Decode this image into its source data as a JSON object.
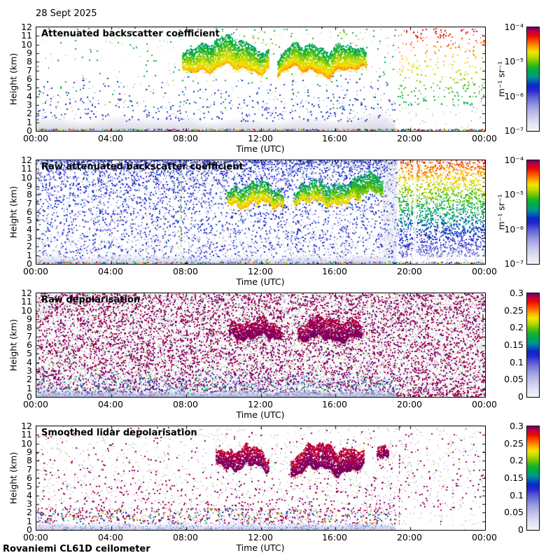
{
  "page": {
    "date": "28 Sept 2025",
    "footer": "Rovaniemi CL61D ceilometer",
    "background": "#ffffff",
    "axis_color": "#000000"
  },
  "chart_data": [
    {
      "type": "heatmap",
      "title": "Attenuated backscatter coefficient",
      "xlabel": "Time (UTC)",
      "ylabel": "Height (km)",
      "x_ticks": [
        "00:00",
        "04:00",
        "08:00",
        "12:00",
        "16:00",
        "20:00",
        "00:00"
      ],
      "x_range_hours": [
        0,
        24
      ],
      "y_ticks": [
        0,
        1,
        2,
        3,
        4,
        5,
        6,
        7,
        8,
        9,
        10,
        11,
        12
      ],
      "y_range_km": [
        0,
        12
      ],
      "colorbar": {
        "ticks": [
          "10⁻⁴",
          "10⁻⁵",
          "10⁻⁶",
          "10⁻⁷"
        ],
        "label": "m⁻¹ sr⁻¹",
        "scale": "log",
        "range": [
          "1e-7",
          "1e-4"
        ]
      },
      "features": [
        {
          "kind": "haze",
          "t": [
            0,
            19.2
          ],
          "km": [
            0,
            1.6
          ],
          "color": "#d4d4e4",
          "alpha": 0.95,
          "bumps": [
            {
              "t": 5.5,
              "w": 1.5,
              "km": 0.5
            },
            {
              "t": 8.2,
              "w": 0.5,
              "km": 0.4
            },
            {
              "t": 18.3,
              "w": 0.7,
              "km": 0.9
            }
          ]
        },
        {
          "kind": "speckle",
          "t": [
            0,
            19.2
          ],
          "km": [
            1.2,
            6.6
          ],
          "density": 0.055,
          "v": [
            0.3,
            0.47
          ],
          "bias": 0.55,
          "size": 2
        },
        {
          "kind": "speckle",
          "t": [
            0,
            19.2
          ],
          "km": [
            2.5,
            12
          ],
          "density": 0.014,
          "v": [
            0.52,
            0.63
          ],
          "bias": 1.25,
          "size": 2
        },
        {
          "kind": "speckle",
          "t": [
            0,
            19.2
          ],
          "km": [
            2,
            12
          ],
          "density": 0.003,
          "v": [
            0.6,
            0.95
          ],
          "bias": 1,
          "size": 1
        },
        {
          "kind": "cloud",
          "t": [
            7.8,
            12.4
          ],
          "baseKm": 7.3,
          "topKm": 10.6,
          "amp": 0.8,
          "density": 0.5,
          "v": [
            0.55,
            0.8
          ],
          "seed": 11
        },
        {
          "kind": "cloud",
          "t": [
            12.9,
            17.6
          ],
          "baseKm": 7.0,
          "topKm": 10.0,
          "amp": 0.9,
          "density": 0.55,
          "v": [
            0.55,
            0.82
          ],
          "seed": 12
        },
        {
          "kind": "speckle",
          "t": [
            9.5,
            17.6
          ],
          "km": [
            9.8,
            11.9
          ],
          "density": 0.035,
          "v": [
            0.6,
            0.72
          ],
          "bias": 1,
          "size": 2
        },
        {
          "kind": "stratified",
          "t": [
            19.3,
            24
          ],
          "km": [
            3,
            12
          ],
          "density": 0.09,
          "vTop": 0.94,
          "vBot": 0.56,
          "jitterV": 0.06,
          "size": 2
        },
        {
          "kind": "speckle",
          "t": [
            19.3,
            24
          ],
          "km": [
            0.3,
            3
          ],
          "density": 0.012,
          "v": [
            0.2,
            0.9
          ],
          "bias": 1,
          "size": 1
        },
        {
          "kind": "bottomline",
          "t": [
            0,
            24
          ],
          "density": 0.55,
          "v": [
            0.1,
            1.0
          ]
        }
      ]
    },
    {
      "type": "heatmap",
      "title": "Raw attenuated backscatter coefficient",
      "xlabel": "Time (UTC)",
      "ylabel": "Height (km)",
      "x_ticks": [
        "00:00",
        "04:00",
        "08:00",
        "12:00",
        "16:00",
        "20:00",
        "00:00"
      ],
      "x_range_hours": [
        0,
        24
      ],
      "y_ticks": [
        0,
        1,
        2,
        3,
        4,
        5,
        6,
        7,
        8,
        9,
        10,
        11,
        12
      ],
      "y_range_km": [
        0,
        12
      ],
      "colorbar": {
        "ticks": [
          "10⁻⁴",
          "10⁻⁵",
          "10⁻⁶",
          "10⁻⁷"
        ],
        "label": "m⁻¹ sr⁻¹",
        "scale": "log",
        "range": [
          "1e-7",
          "1e-4"
        ]
      },
      "features": [
        {
          "kind": "speckle",
          "t": [
            0,
            19.25
          ],
          "km": [
            0,
            12
          ],
          "density": 0.3,
          "v": [
            0.22,
            0.48
          ],
          "bias": 1.7,
          "size": 2
        },
        {
          "kind": "speckle",
          "t": [
            0,
            19.25
          ],
          "km": [
            0,
            3.5
          ],
          "density": 0.1,
          "v": [
            0.04,
            0.22
          ],
          "bias": 0.8,
          "size": 2
        },
        {
          "kind": "haze",
          "t": [
            0,
            19.25
          ],
          "km": [
            0,
            1.1
          ],
          "color": "#ccd0ea",
          "alpha": 0.9,
          "bumps": [
            {
              "t": 5.5,
              "w": 1.5,
              "km": 0.3
            }
          ]
        },
        {
          "kind": "cloud",
          "t": [
            10.2,
            13.2
          ],
          "baseKm": 7.0,
          "topKm": 9.4,
          "amp": 0.7,
          "density": 0.45,
          "v": [
            0.55,
            0.8
          ],
          "seed": 21
        },
        {
          "kind": "cloud",
          "t": [
            13.8,
            17.3
          ],
          "baseKm": 7.2,
          "topKm": 9.6,
          "amp": 0.7,
          "density": 0.42,
          "v": [
            0.52,
            0.78
          ],
          "seed": 22
        },
        {
          "kind": "cloud",
          "t": [
            16.9,
            18.5
          ],
          "baseKm": 8.4,
          "topKm": 10.6,
          "amp": 0.5,
          "density": 0.5,
          "v": [
            0.55,
            0.68
          ],
          "seed": 23
        },
        {
          "kind": "vline",
          "t": 7.7,
          "km": [
            0,
            12
          ],
          "density": 0.5,
          "v": [
            0.55,
            0.8
          ]
        },
        {
          "kind": "vband",
          "t": [
            18.55,
            19.3
          ],
          "km": [
            0,
            12
          ],
          "color": "#ededf3",
          "alpha": 0.75
        },
        {
          "kind": "speckle",
          "t": [
            18.55,
            19.3
          ],
          "km": [
            0,
            12
          ],
          "density": 0.15,
          "v": [
            0.25,
            0.45
          ],
          "bias": 1.4,
          "size": 2
        },
        {
          "kind": "stratified",
          "t": [
            19.35,
            24
          ],
          "km": [
            0.9,
            12
          ],
          "density": 0.5,
          "vTop": 0.88,
          "vBot": 0.28,
          "jitterV": 0.14,
          "size": 2
        },
        {
          "kind": "speckle",
          "t": [
            19.35,
            24
          ],
          "km": [
            0,
            1.2
          ],
          "density": 0.22,
          "colors": [
            "#dcdce8",
            "#e8e8f0",
            "#c8c8da"
          ],
          "size": 2
        },
        {
          "kind": "vband",
          "t": [
            20.15,
            20.33
          ],
          "km": [
            0,
            12
          ],
          "color": "#ffffff",
          "alpha": 0.8
        },
        {
          "kind": "bottomline",
          "t": [
            0,
            24
          ],
          "density": 0.45,
          "v": [
            0.1,
            1.0
          ]
        }
      ]
    },
    {
      "type": "heatmap",
      "title": "Raw depolarisation",
      "xlabel": "Time (UTC)",
      "ylabel": "Height (km)",
      "x_ticks": [
        "00:00",
        "04:00",
        "08:00",
        "12:00",
        "16:00",
        "20:00",
        "00:00"
      ],
      "x_range_hours": [
        0,
        24
      ],
      "y_ticks": [
        0,
        1,
        2,
        3,
        4,
        5,
        6,
        7,
        8,
        9,
        10,
        11,
        12
      ],
      "y_range_km": [
        0,
        12
      ],
      "colorbar": {
        "ticks": [
          "0.3",
          "0.25",
          "0.2",
          "0.15",
          "0.1",
          "0.05",
          "0"
        ],
        "label": "",
        "scale": "linear",
        "range": [
          0,
          0.3
        ]
      },
      "features": [
        {
          "kind": "speckle",
          "t": [
            0,
            24
          ],
          "km": [
            0,
            12
          ],
          "density": 0.3,
          "colors": [
            "#e0e0ea",
            "#d4d4e0",
            "#ececf2"
          ],
          "size": 2
        },
        {
          "kind": "speckle",
          "t": [
            0,
            24
          ],
          "km": [
            0,
            12
          ],
          "density": 0.33,
          "v": [
            0.965,
            1.0
          ],
          "bias": 1.1,
          "size": 2
        },
        {
          "kind": "speckle",
          "t": [
            0,
            24
          ],
          "km": [
            0,
            12
          ],
          "density": 0.045,
          "v": [
            0.05,
            0.9
          ],
          "bias": 1,
          "size": 1
        },
        {
          "kind": "speckle",
          "t": [
            0,
            19.25
          ],
          "km": [
            0,
            3
          ],
          "density": 0.28,
          "v": [
            0.08,
            0.62
          ],
          "bias": 0.6,
          "size": 2
        },
        {
          "kind": "haze",
          "t": [
            0,
            19.25
          ],
          "km": [
            0,
            0.9
          ],
          "color": "#b6bee6",
          "alpha": 0.95,
          "bumps": []
        },
        {
          "kind": "cloud",
          "t": [
            10.3,
            13.1
          ],
          "baseKm": 7.0,
          "topKm": 9.0,
          "amp": 0.6,
          "density": 0.5,
          "v": [
            0.96,
            1.0
          ],
          "seed": 31
        },
        {
          "kind": "cloud",
          "t": [
            14.0,
            17.4
          ],
          "baseKm": 6.8,
          "topKm": 9.2,
          "amp": 0.6,
          "density": 0.5,
          "v": [
            0.96,
            1.0
          ],
          "seed": 32
        },
        {
          "kind": "speckle",
          "t": [
            19.25,
            24
          ],
          "km": [
            0,
            1
          ],
          "density": 0.3,
          "v": [
            0.96,
            1.0
          ],
          "bias": 1,
          "size": 2
        }
      ]
    },
    {
      "type": "heatmap",
      "title": "Smoothed lidar depolarisation",
      "xlabel": "Time (UTC)",
      "ylabel": "Height (km)",
      "x_ticks": [
        "00:00",
        "04:00",
        "08:00",
        "12:00",
        "16:00",
        "20:00",
        "00:00"
      ],
      "x_range_hours": [
        0,
        24
      ],
      "y_ticks": [
        0,
        1,
        2,
        3,
        4,
        5,
        6,
        7,
        8,
        9,
        10,
        11,
        12
      ],
      "y_range_km": [
        0,
        12
      ],
      "colorbar": {
        "ticks": [
          "0.3",
          "0.25",
          "0.2",
          "0.15",
          "0.1",
          "0.05",
          "0"
        ],
        "label": "",
        "scale": "linear",
        "range": [
          0,
          0.3
        ]
      },
      "features": [
        {
          "kind": "speckle",
          "t": [
            0,
            24
          ],
          "km": [
            0,
            12
          ],
          "density": 0.05,
          "colors": [
            "#d6d6e0",
            "#e2e2ea"
          ],
          "size": 2
        },
        {
          "kind": "speckle",
          "t": [
            0,
            24
          ],
          "km": [
            2.4,
            12
          ],
          "density": 0.03,
          "v": [
            0.965,
            1.0
          ],
          "bias": 0.8,
          "size": 2
        },
        {
          "kind": "speckle",
          "t": [
            0,
            24
          ],
          "km": [
            2.4,
            12
          ],
          "density": 0.006,
          "v": [
            0.1,
            0.9
          ],
          "bias": 0.9,
          "size": 1
        },
        {
          "kind": "speckle",
          "t": [
            0,
            19.2
          ],
          "km": [
            2.2,
            5.5
          ],
          "density": 0.05,
          "v": [
            0.95,
            1.0
          ],
          "bias": 0.8,
          "size": 2
        },
        {
          "kind": "speckle",
          "t": [
            0,
            19.2
          ],
          "km": [
            0.8,
            2.6
          ],
          "density": 0.17,
          "v": [
            0.95,
            1.0
          ],
          "bias": 1,
          "size": 2
        },
        {
          "kind": "speckle",
          "t": [
            0,
            19.2
          ],
          "km": [
            0.8,
            2.6
          ],
          "density": 0.15,
          "v": [
            0.1,
            0.8
          ],
          "bias": 1,
          "size": 2
        },
        {
          "kind": "haze",
          "t": [
            0,
            19.2
          ],
          "km": [
            0,
            0.9
          ],
          "color": "#c2c8ea",
          "alpha": 0.95,
          "bumps": []
        },
        {
          "kind": "speckle",
          "t": [
            0,
            19.2
          ],
          "km": [
            0,
            0.9
          ],
          "density": 0.08,
          "v": [
            0.28,
            0.5
          ],
          "bias": 0.7,
          "size": 1
        },
        {
          "kind": "cloud",
          "t": [
            9.6,
            12.4
          ],
          "baseKm": 7.4,
          "topKm": 9.6,
          "amp": 0.8,
          "density": 0.6,
          "v": [
            0.95,
            1.0
          ],
          "seed": 41
        },
        {
          "kind": "cloud",
          "t": [
            13.6,
            17.5
          ],
          "baseKm": 7.0,
          "topKm": 9.8,
          "amp": 0.9,
          "density": 0.62,
          "v": [
            0.95,
            1.0
          ],
          "seed": 42
        },
        {
          "kind": "cloud",
          "t": [
            18.2,
            18.8
          ],
          "baseKm": 8.6,
          "topKm": 9.8,
          "amp": 0.3,
          "density": 0.55,
          "v": [
            0.95,
            1.0
          ],
          "seed": 43
        },
        {
          "kind": "speckle",
          "t": [
            9.6,
            17.5
          ],
          "km": [
            7,
            9.8
          ],
          "density": 0.015,
          "v": [
            0.3,
            0.8
          ],
          "bias": 1,
          "size": 1
        },
        {
          "kind": "vline",
          "t": 19.4,
          "km": [
            0,
            12
          ],
          "density": 0.3,
          "v": [
            0.95,
            1.0
          ]
        },
        {
          "kind": "vline",
          "t": 21.6,
          "km": [
            0,
            3
          ],
          "density": 0.25,
          "v": [
            0.95,
            1.0
          ]
        }
      ]
    }
  ],
  "colormap": [
    [
      0.0,
      "#f4f4fb"
    ],
    [
      0.08,
      "#e0e0f4"
    ],
    [
      0.16,
      "#c2c2ec"
    ],
    [
      0.24,
      "#9a9ae2"
    ],
    [
      0.32,
      "#6464d8"
    ],
    [
      0.39,
      "#2828d0"
    ],
    [
      0.44,
      "#0a28c8"
    ],
    [
      0.48,
      "#0064b0"
    ],
    [
      0.52,
      "#009690"
    ],
    [
      0.57,
      "#00a850"
    ],
    [
      0.62,
      "#1eb42a"
    ],
    [
      0.67,
      "#78c800"
    ],
    [
      0.72,
      "#c8dc00"
    ],
    [
      0.76,
      "#f0e600"
    ],
    [
      0.8,
      "#ffb400"
    ],
    [
      0.84,
      "#ff7800"
    ],
    [
      0.88,
      "#ff3c00"
    ],
    [
      0.92,
      "#e60a00"
    ],
    [
      0.96,
      "#be0046"
    ],
    [
      1.0,
      "#6e0066"
    ]
  ]
}
